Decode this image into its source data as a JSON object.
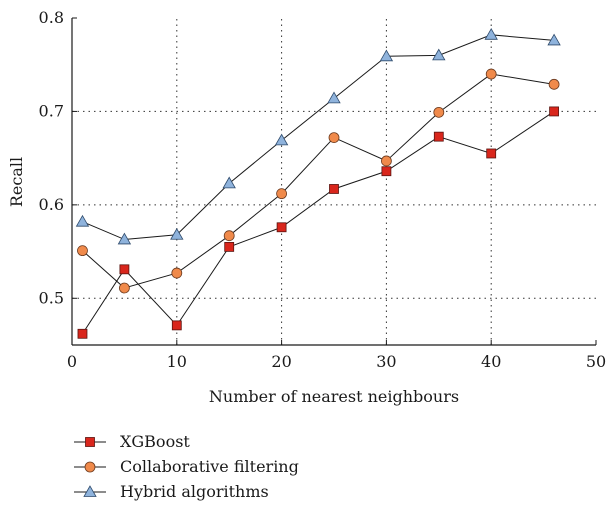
{
  "chart_data": {
    "type": "line",
    "title": "",
    "xlabel": "Number of nearest neighbours",
    "ylabel": "Recall",
    "xlim": [
      0,
      50
    ],
    "ylim": [
      0.45,
      0.8
    ],
    "xticks": [
      0,
      10,
      20,
      30,
      40,
      50
    ],
    "yticks": [
      0.5,
      0.6,
      0.7,
      0.8
    ],
    "xtick_labels": [
      "0",
      "10",
      "20",
      "30",
      "40",
      "50"
    ],
    "ytick_labels": [
      "0.5",
      "0.6",
      "0.7",
      "0.8"
    ],
    "grid": "dotted, at x = 10, 20, 30, 40 and y = 0.5, 0.6, 0.7",
    "legend_position": "below the plot, left",
    "series": [
      {
        "name": "XGBoost",
        "marker": "square",
        "color": "#d9261c",
        "x": [
          1,
          5,
          10,
          15,
          20,
          25,
          30,
          35,
          40,
          46
        ],
        "y": [
          0.462,
          0.531,
          0.471,
          0.555,
          0.576,
          0.617,
          0.636,
          0.673,
          0.655,
          0.7
        ]
      },
      {
        "name": "Collaborative filtering",
        "marker": "circle",
        "color": "#f08a4b",
        "x": [
          1,
          5,
          10,
          15,
          20,
          25,
          30,
          35,
          40,
          46
        ],
        "y": [
          0.551,
          0.511,
          0.527,
          0.567,
          0.612,
          0.672,
          0.647,
          0.699,
          0.74,
          0.729
        ]
      },
      {
        "name": "Hybrid algorithms",
        "marker": "triangle",
        "color": "#8fb3dc",
        "x": [
          1,
          5,
          10,
          15,
          20,
          25,
          30,
          35,
          40,
          46
        ],
        "y": [
          0.582,
          0.563,
          0.568,
          0.623,
          0.669,
          0.714,
          0.759,
          0.76,
          0.782,
          0.776
        ]
      }
    ]
  }
}
